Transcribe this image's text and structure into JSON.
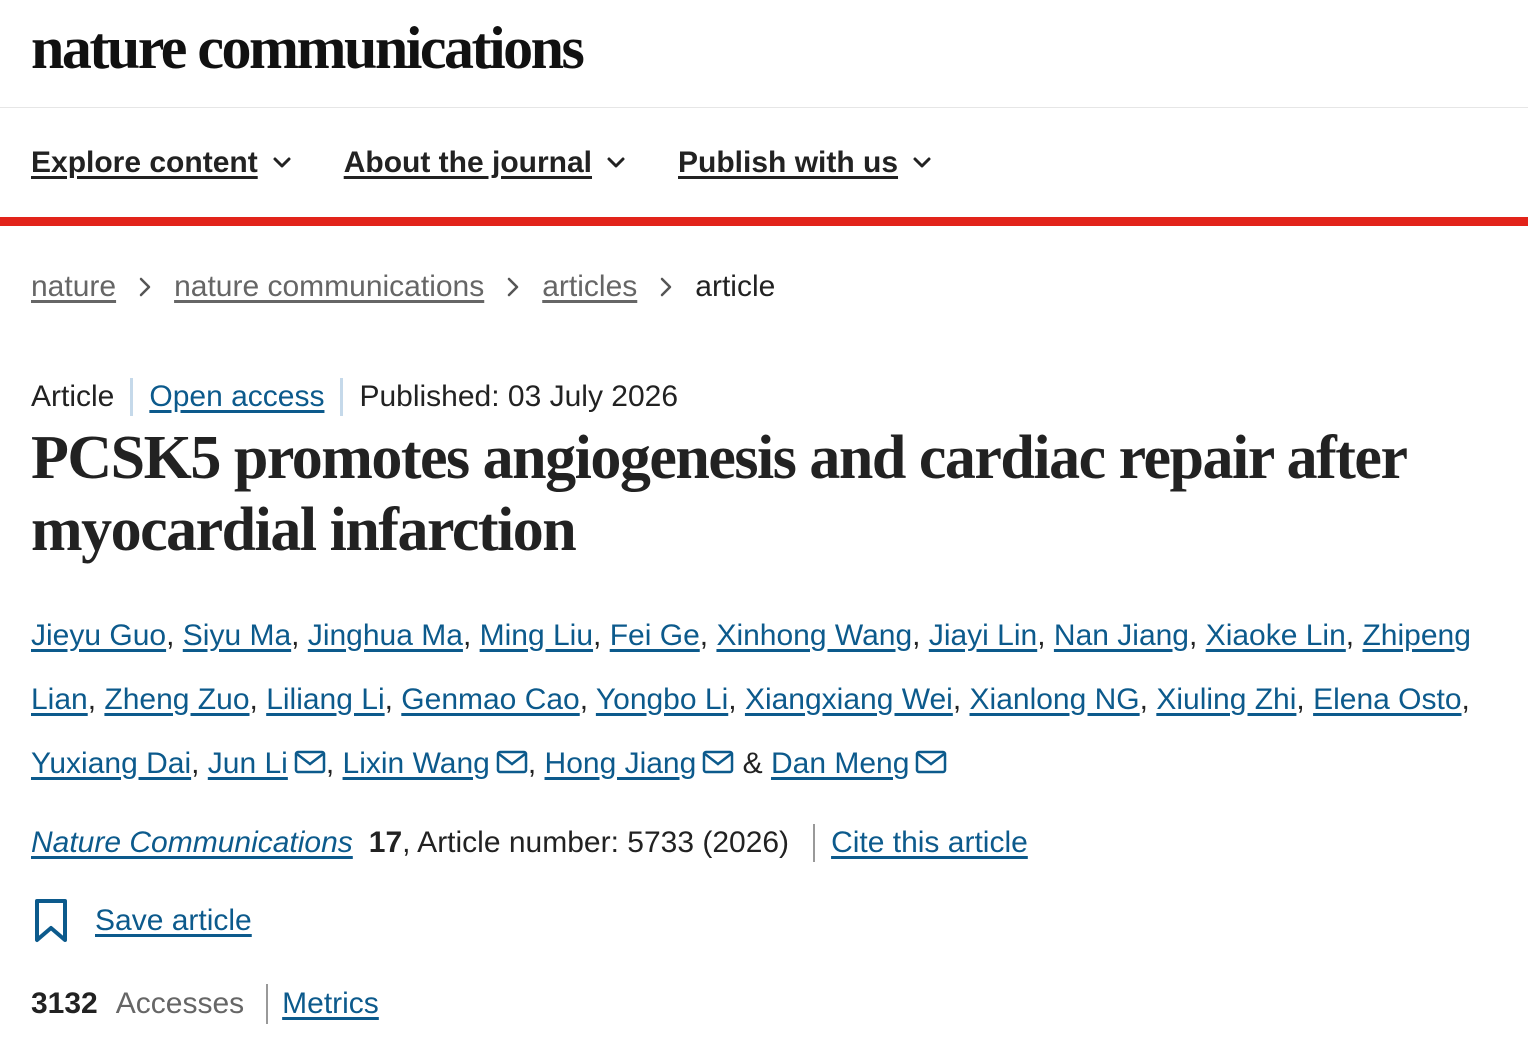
{
  "header": {
    "logo": "nature communications"
  },
  "nav": [
    "Explore content",
    "About the journal",
    "Publish with us"
  ],
  "breadcrumbs": [
    "nature",
    "nature communications",
    "articles",
    "article"
  ],
  "meta": {
    "type": "Article",
    "access": "Open access",
    "published": "Published: 03 July 2026"
  },
  "title": "PCSK5 promotes angiogenesis and cardiac repair after myocardial infarction",
  "authors": [
    {
      "name": "Jieyu Guo",
      "corresponding": false
    },
    {
      "name": "Siyu Ma",
      "corresponding": false
    },
    {
      "name": "Jinghua Ma",
      "corresponding": false
    },
    {
      "name": "Ming Liu",
      "corresponding": false
    },
    {
      "name": "Fei Ge",
      "corresponding": false
    },
    {
      "name": "Xinhong Wang",
      "corresponding": false
    },
    {
      "name": "Jiayi Lin",
      "corresponding": false
    },
    {
      "name": "Nan Jiang",
      "corresponding": false
    },
    {
      "name": "Xiaoke Lin",
      "corresponding": false
    },
    {
      "name": "Zhipeng Lian",
      "corresponding": false
    },
    {
      "name": "Zheng Zuo",
      "corresponding": false
    },
    {
      "name": "Liliang Li",
      "corresponding": false
    },
    {
      "name": "Genmao Cao",
      "corresponding": false
    },
    {
      "name": "Yongbo Li",
      "corresponding": false
    },
    {
      "name": "Xiangxiang Wei",
      "corresponding": false
    },
    {
      "name": "Xianlong NG",
      "corresponding": false
    },
    {
      "name": "Xiuling Zhi",
      "corresponding": false
    },
    {
      "name": "Elena Osto",
      "corresponding": false
    },
    {
      "name": "Yuxiang Dai",
      "corresponding": false
    },
    {
      "name": "Jun Li",
      "corresponding": true
    },
    {
      "name": "Lixin Wang",
      "corresponding": true
    },
    {
      "name": "Hong Jiang",
      "corresponding": true
    },
    {
      "name": "Dan Meng",
      "corresponding": true
    }
  ],
  "author_separator": ",",
  "author_conjunction": "&",
  "citation": {
    "journal": "Nature Communications",
    "volume": "17",
    "details": ", Article number: 5733 (2026)",
    "cite_link": "Cite this article"
  },
  "save": "Save article",
  "metrics": {
    "accesses": 3132,
    "accesses_label": "Accesses",
    "link": "Metrics"
  }
}
